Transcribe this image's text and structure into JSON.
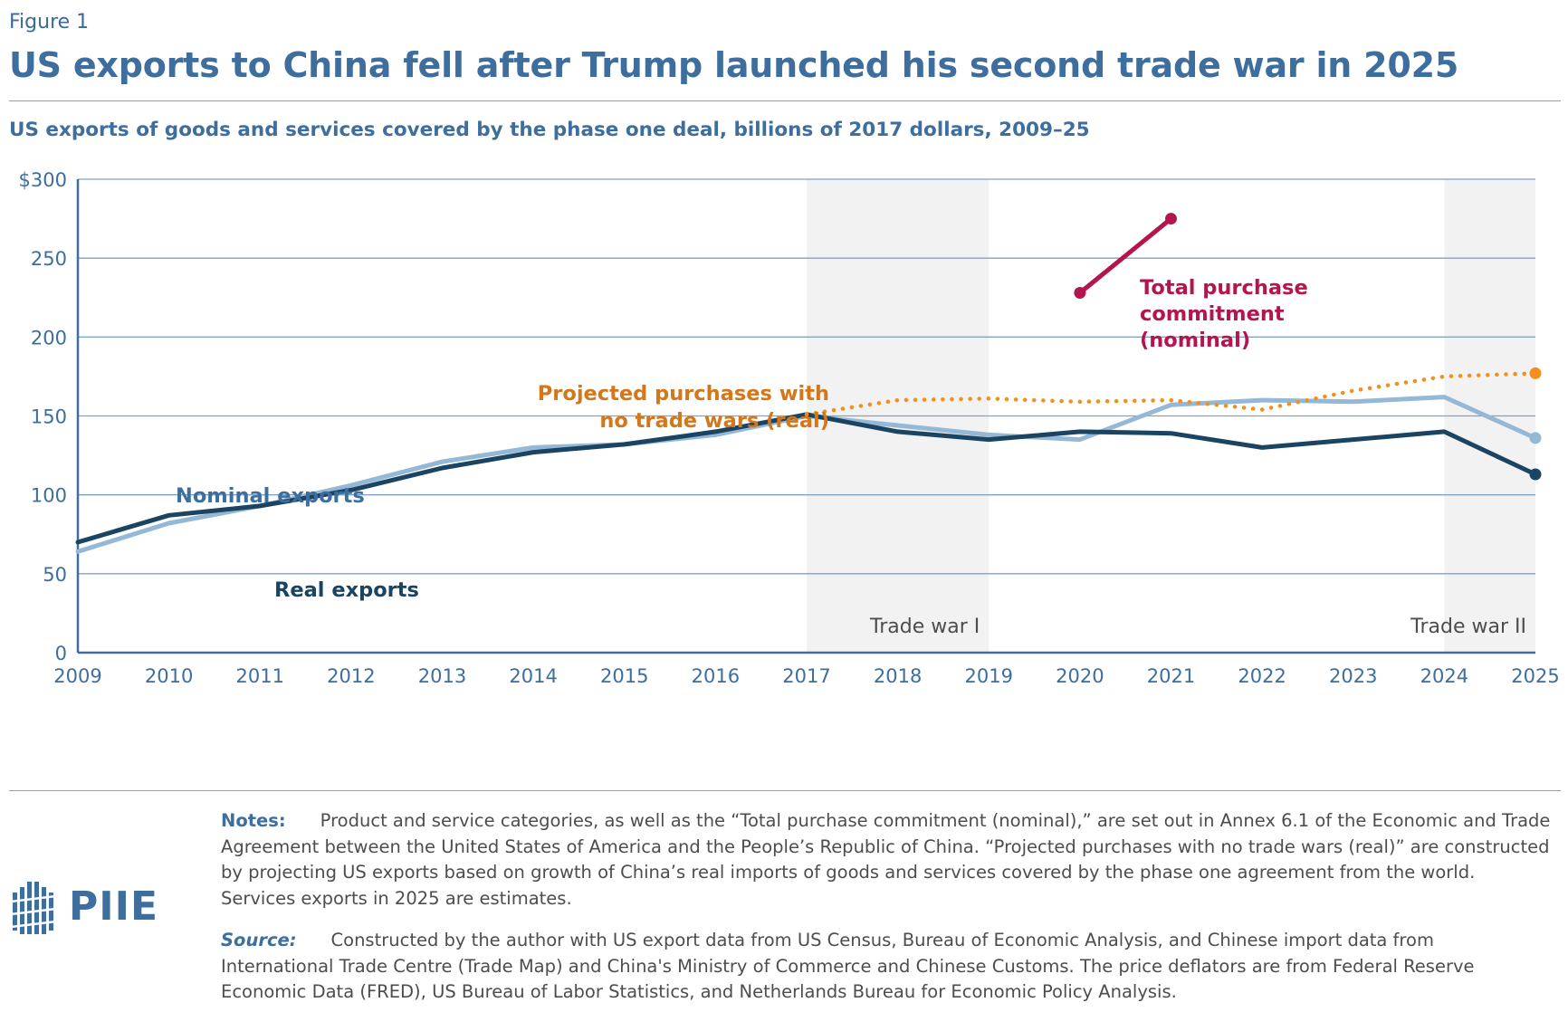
{
  "figure_label": "Figure 1",
  "title": "US exports to China fell after Trump launched his second trade war in 2025",
  "subtitle": "US exports of goods and services covered by the phase one deal, billions of 2017 dollars, 2009–25",
  "chart_data": {
    "type": "line",
    "x": [
      2009,
      2010,
      2011,
      2012,
      2013,
      2014,
      2015,
      2016,
      2017,
      2018,
      2019,
      2020,
      2021,
      2022,
      2023,
      2024,
      2025
    ],
    "xlim": [
      2009,
      2025
    ],
    "ylim": [
      0,
      300
    ],
    "yticks": [
      0,
      50,
      100,
      150,
      200,
      250,
      300
    ],
    "ytick_labels": [
      "0",
      "50",
      "100",
      "150",
      "200",
      "250",
      "$300"
    ],
    "grid": true,
    "shaded_periods": [
      {
        "start": 2017,
        "end": 2019,
        "label": "Trade war I"
      },
      {
        "start": 2024,
        "end": 2025,
        "label": "Trade war II"
      }
    ],
    "series": [
      {
        "name": "Nominal exports",
        "color": "#94b8d6",
        "style": "solid",
        "x": [
          2009,
          2010,
          2011,
          2012,
          2013,
          2014,
          2015,
          2016,
          2017,
          2018,
          2019,
          2020,
          2021,
          2022,
          2023,
          2024,
          2025
        ],
        "values": [
          64,
          82,
          93,
          106,
          121,
          130,
          132,
          138,
          150,
          144,
          138,
          135,
          157,
          160,
          159,
          162,
          136
        ],
        "end_marker": true
      },
      {
        "name": "Real exports",
        "color": "#1a4462",
        "style": "solid",
        "x": [
          2009,
          2010,
          2011,
          2012,
          2013,
          2014,
          2015,
          2016,
          2017,
          2018,
          2019,
          2020,
          2021,
          2022,
          2023,
          2024,
          2025
        ],
        "values": [
          70,
          87,
          93,
          103,
          117,
          127,
          132,
          140,
          151,
          140,
          135,
          140,
          139,
          130,
          135,
          140,
          113
        ],
        "end_marker": true
      },
      {
        "name": "Projected purchases with no trade wars (real)",
        "label_lines": [
          "Projected purchases with",
          "no trade wars (real)"
        ],
        "color": "#f1901e",
        "label_color": "#d4761a",
        "style": "dotted",
        "x": [
          2017,
          2018,
          2019,
          2020,
          2021,
          2022,
          2023,
          2024,
          2025
        ],
        "values": [
          151,
          160,
          161,
          159,
          160,
          154,
          166,
          175,
          177
        ],
        "end_marker": true
      },
      {
        "name": "Total purchase commitment (nominal)",
        "label_lines": [
          "Total purchase",
          "commitment",
          "(nominal)"
        ],
        "color": "#b5154f",
        "style": "solid",
        "x": [
          2020,
          2021
        ],
        "values": [
          228,
          275
        ],
        "start_marker": true,
        "end_marker": true
      }
    ]
  },
  "notes_label": "Notes:",
  "notes_text": "Product and service categories, as well as the “Total purchase commitment (nominal),” are set out in Annex 6.1 of the Economic and Trade Agreement between the United States of America and the People’s Republic of China. “Projected purchases with no trade wars (real)” are constructed by projecting US exports based on growth of China’s real imports of goods and services covered by the phase one agreement from the world. Services exports in 2025 are estimates.",
  "source_label": "Source:",
  "source_text": "Constructed by the author with US export data from US Census, Bureau of Economic Analysis, and Chinese import data from International Trade Centre (Trade Map) and China's Ministry of Commerce and Chinese Customs. The price deflators are from Federal Reserve Economic Data (FRED), US Bureau of Labor Statistics, and Netherlands Bureau for Economic Policy Analysis.",
  "logo_text": "PIIE",
  "logo_icon": "piie-logo-icon",
  "colors": {
    "brand": "#3d6e9e",
    "shade": "#f2f2f2",
    "grid": "#7fa3c4"
  }
}
